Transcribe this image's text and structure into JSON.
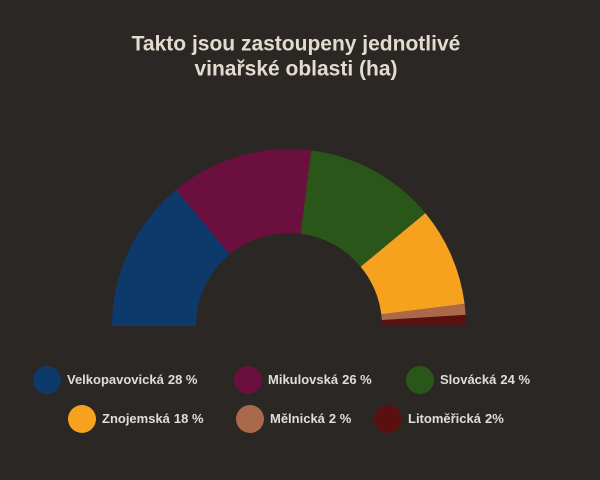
{
  "chart_data": {
    "type": "semidonut",
    "title": [
      "Takto jsou zastoupeny jednotlivé",
      "vinařské oblasti (ha)"
    ],
    "categories": [
      "Velkopavovická",
      "Mikulovská",
      "Slovácká",
      "Znojemská",
      "Mělnická",
      "Litoměřická"
    ],
    "values": [
      28,
      26,
      24,
      18,
      2,
      2
    ],
    "value_labels": [
      "28 %",
      "26 %",
      "24 %",
      "18 %",
      "2 %",
      "2%"
    ],
    "colors": [
      "#0d3a6a",
      "#6a0f3e",
      "#2a5719",
      "#f6a21e",
      "#a9694a",
      "#5b1010"
    ]
  }
}
